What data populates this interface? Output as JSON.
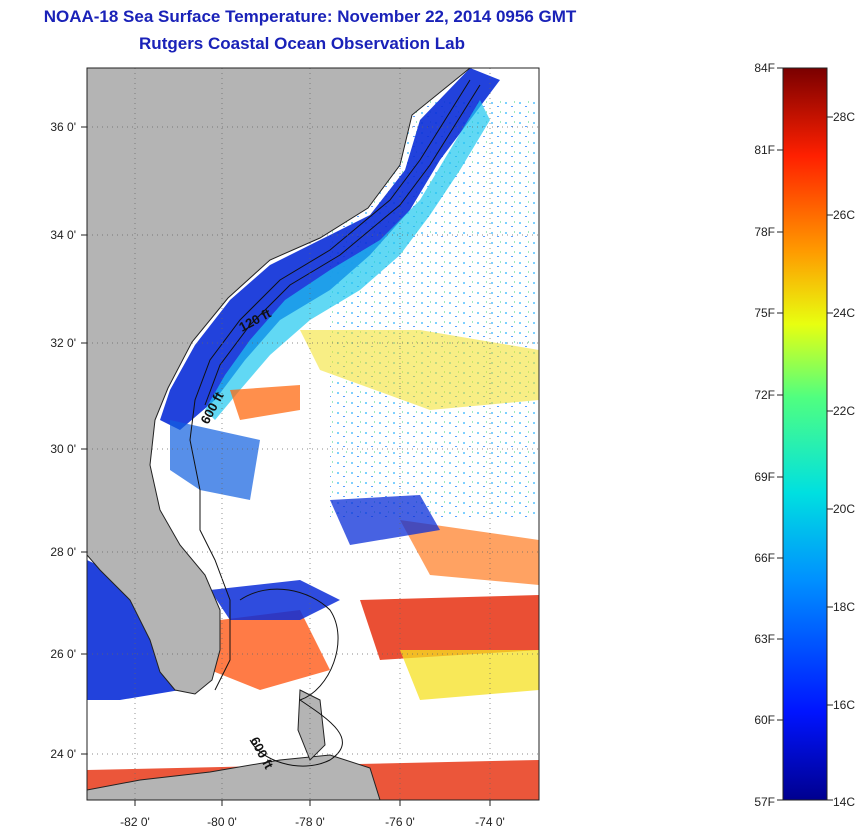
{
  "title": "NOAA-18 Sea Surface Temperature:  November 22, 2014 0956 GMT",
  "subtitle": "Rutgers Coastal Ocean Observation Lab",
  "map": {
    "lat_ticks": [
      "36 0'",
      "34 0'",
      "32 0'",
      "30 0'",
      "28 0'",
      "26 0'",
      "24 0'"
    ],
    "lon_ticks": [
      "-82 0'",
      "-80 0'",
      "-78 0'",
      "-76 0'",
      "-74 0'"
    ],
    "isobath_labels": [
      "120 ft",
      "600 ft",
      "600 ft"
    ],
    "colors": {
      "land": "#b4b4b4",
      "ocean_cold": "#0a2dd8",
      "ocean_warm": "#e83818"
    }
  },
  "colorbar": {
    "f_labels": [
      "84F",
      "81F",
      "78F",
      "75F",
      "72F",
      "69F",
      "66F",
      "63F",
      "60F",
      "57F"
    ],
    "c_labels": [
      "28C",
      "26C",
      "24C",
      "22C",
      "20C",
      "18C",
      "16C",
      "14C"
    ]
  }
}
